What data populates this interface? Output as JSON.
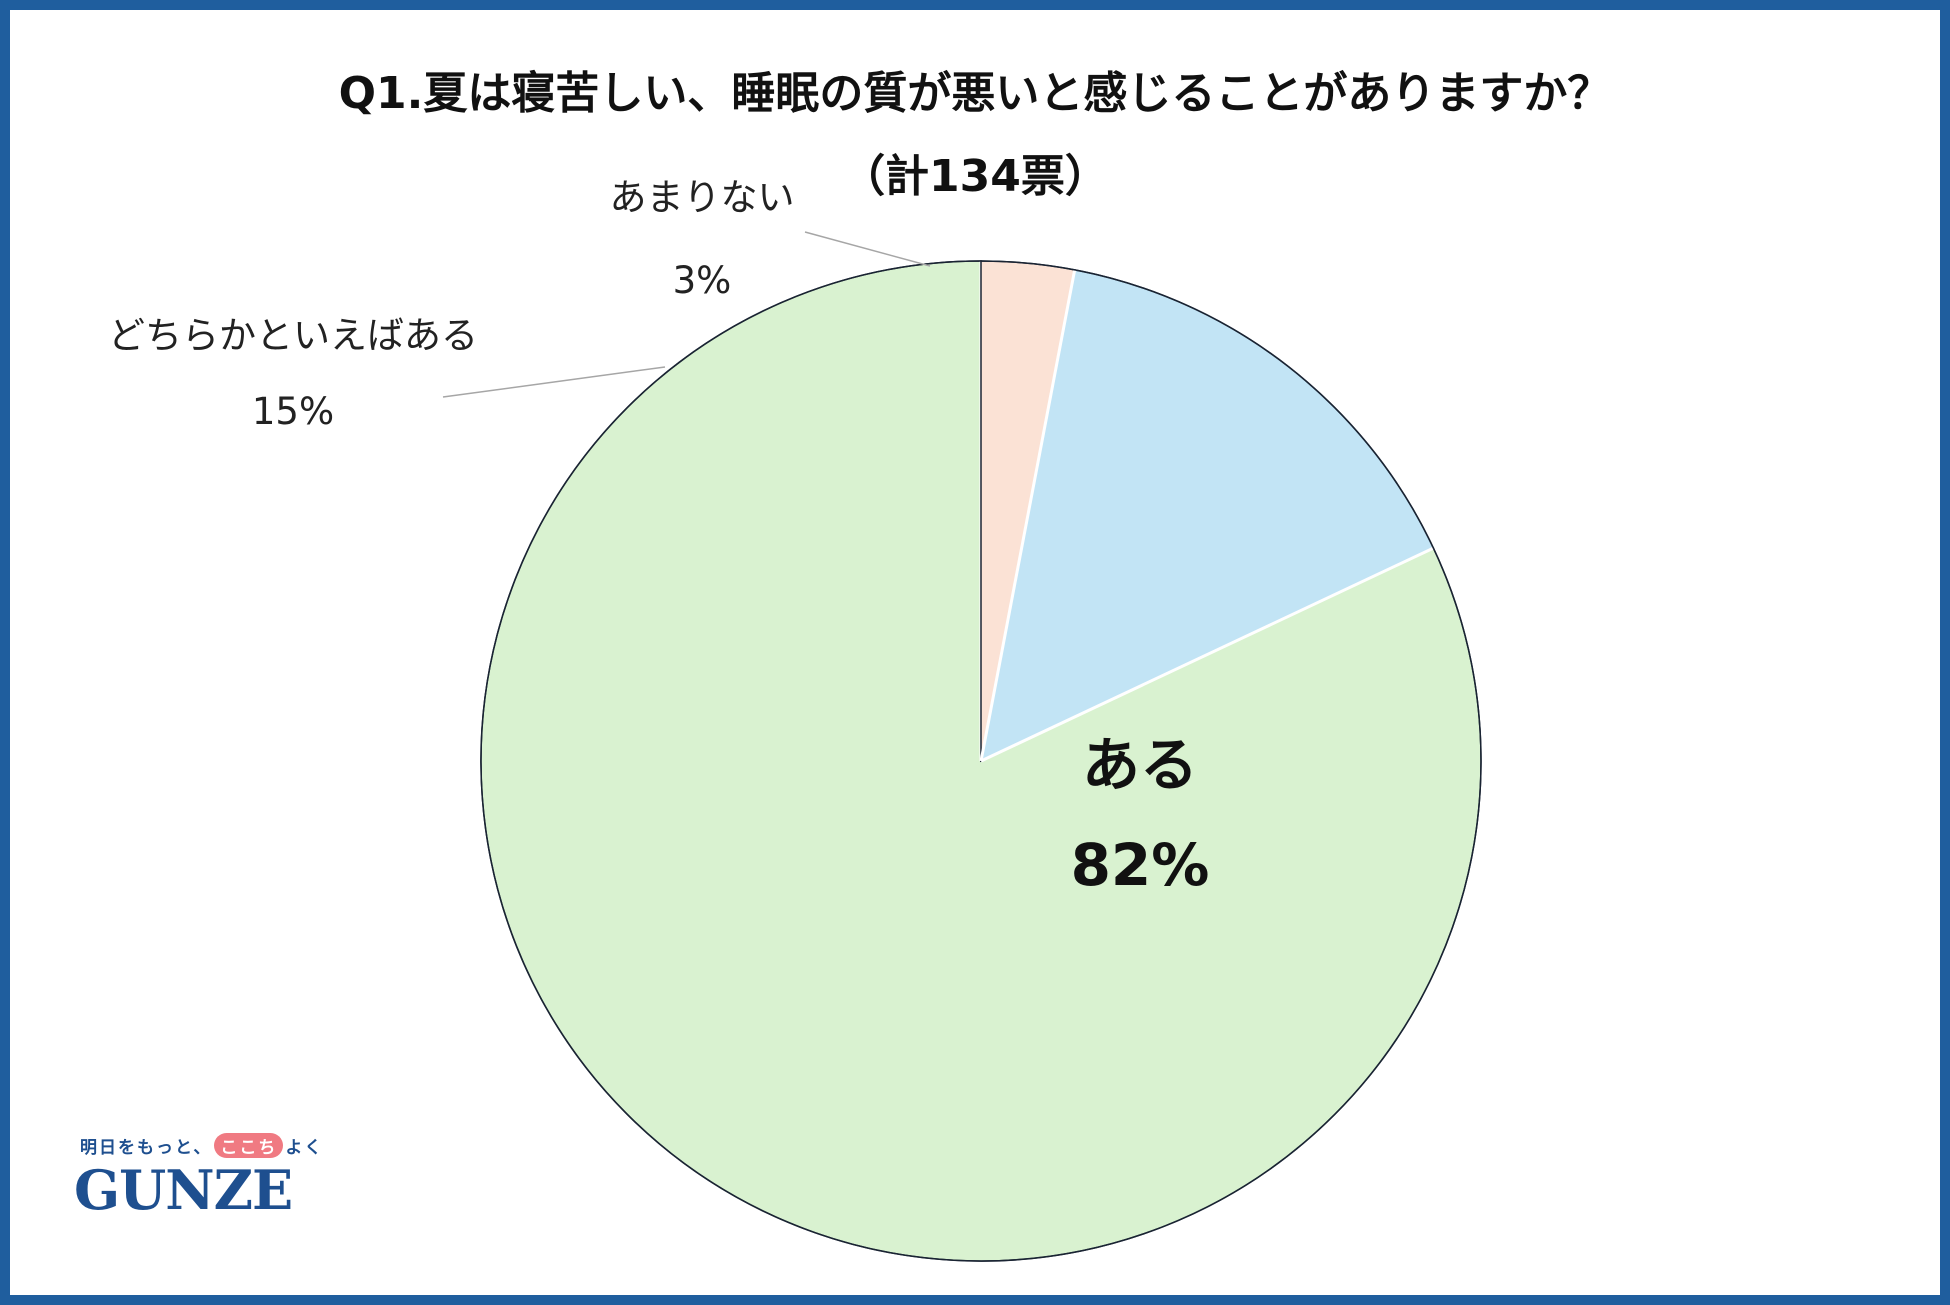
{
  "chart_data": {
    "type": "pie",
    "title": "Q1.夏は寝苦しい、睡眠の質が悪いと感じることがありますか？",
    "subtitle": "（計134票）",
    "slices": [
      {
        "label": "ある",
        "value": 82,
        "display": "82%",
        "color": "#d9f2d0"
      },
      {
        "label": "どちらかといえばある",
        "value": 15,
        "display": "15%",
        "color": "#c2e4f5"
      },
      {
        "label": "あまりない",
        "value": 3,
        "display": "3%",
        "color": "#fbe2d5"
      }
    ],
    "start": "12 o'clock",
    "direction": "counterclockwise",
    "legend": "none"
  },
  "logo": {
    "tagline_pre": "明日をもっと、",
    "tagline_highlight": "ここち",
    "tagline_post": "よく",
    "brand": "GUNZE"
  },
  "colors": {
    "frame": "#1f5e9e",
    "brand": "#1e4f8f",
    "slice_outline": "#1a2433"
  }
}
